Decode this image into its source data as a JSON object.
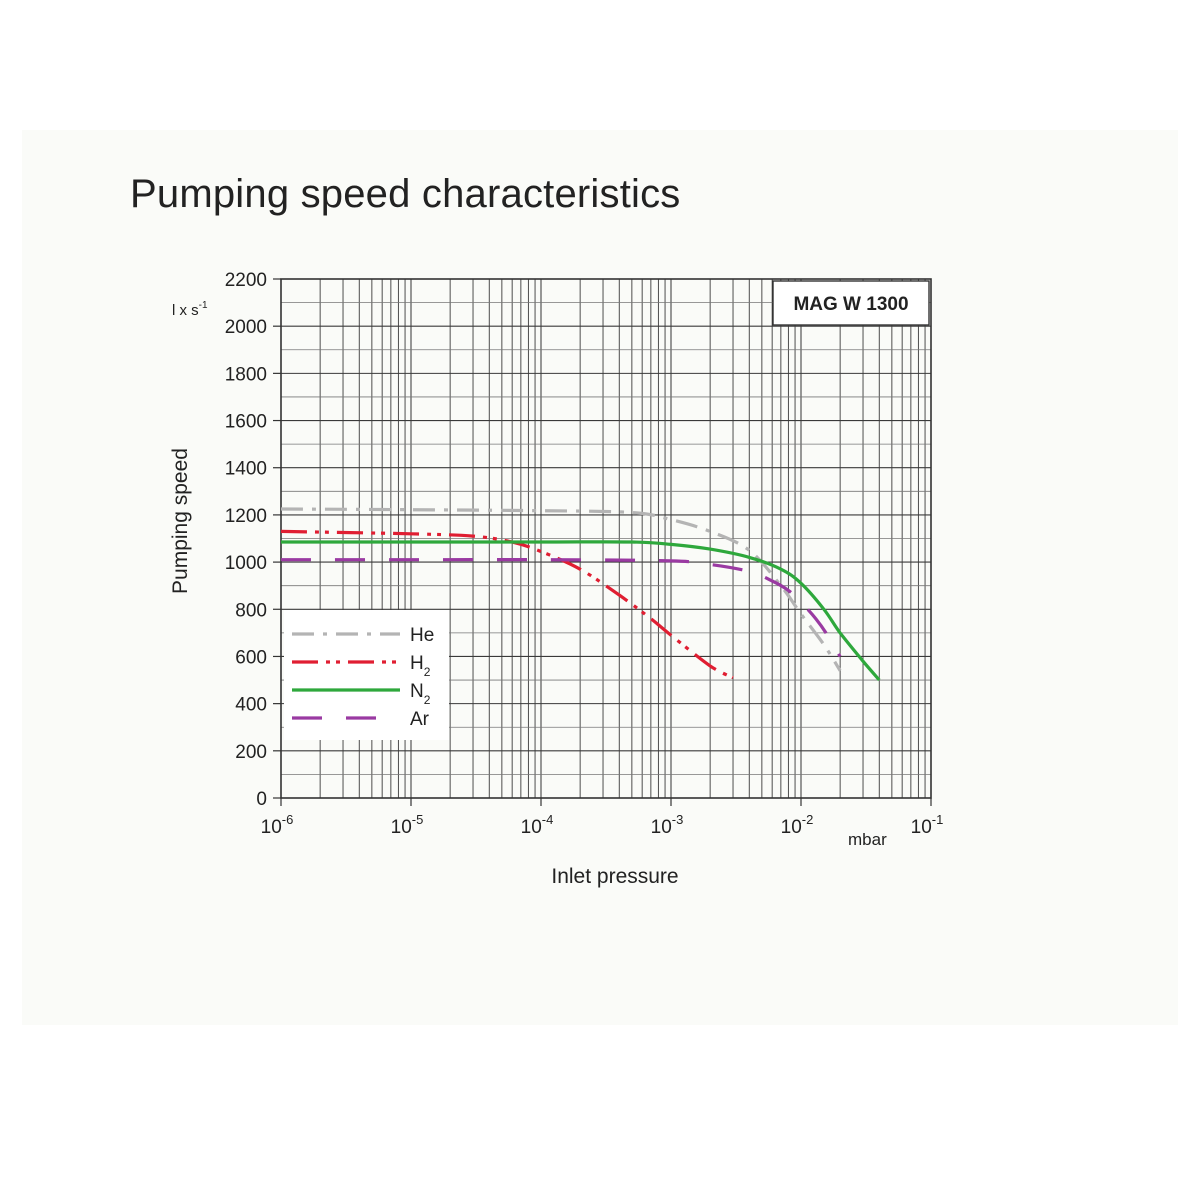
{
  "title": "Pumping speed characteristics",
  "chart_data": {
    "type": "line",
    "title": "Pumping speed characteristics",
    "model_label": "MAG W 1300",
    "xlabel": "Inlet pressure",
    "x_unit": "mbar",
    "ylabel": "Pumping speed",
    "y_unit_base": "l x s",
    "y_unit_exp": "-1",
    "x_scale": "log",
    "xlim": [
      1e-06,
      0.1
    ],
    "ylim": [
      0,
      2200
    ],
    "grid": true,
    "legend_position": "bottom-left",
    "x_ticks": [
      {
        "base": "10",
        "exp": "-6",
        "value": 1e-06
      },
      {
        "base": "10",
        "exp": "-5",
        "value": 1e-05
      },
      {
        "base": "10",
        "exp": "-4",
        "value": 0.0001
      },
      {
        "base": "10",
        "exp": "-3",
        "value": 0.001
      },
      {
        "base": "10",
        "exp": "-2",
        "value": 0.01
      },
      {
        "base": "10",
        "exp": "-1",
        "value": 0.1
      }
    ],
    "y_ticks": [
      "0",
      "200",
      "400",
      "600",
      "800",
      "1000",
      "1200",
      "1400",
      "1600",
      "1800",
      "2000",
      "2200"
    ],
    "series": [
      {
        "name": "He",
        "name_base": "He",
        "name_sub": "",
        "color": "#b4b4b4",
        "dash": "dash-dot",
        "x": [
          1e-06,
          1e-05,
          0.0001,
          0.0005,
          0.001,
          0.002,
          0.004,
          0.007,
          0.01,
          0.015,
          0.02
        ],
        "y": [
          1225,
          1222,
          1218,
          1210,
          1180,
          1130,
          1050,
          900,
          780,
          650,
          540
        ]
      },
      {
        "name": "H2",
        "name_base": "H",
        "name_sub": "2",
        "color": "#e01e32",
        "dash": "dash-dot-dot",
        "x": [
          1e-06,
          1e-05,
          3e-05,
          6e-05,
          0.0001,
          0.0002,
          0.0004,
          0.0007,
          0.001,
          0.002,
          0.003
        ],
        "y": [
          1130,
          1120,
          1110,
          1085,
          1045,
          970,
          860,
          760,
          690,
          560,
          510
        ]
      },
      {
        "name": "N2",
        "name_base": "N",
        "name_sub": "2",
        "color": "#2ea83c",
        "dash": "solid",
        "x": [
          1e-06,
          1e-05,
          0.0001,
          0.0005,
          0.001,
          0.002,
          0.004,
          0.007,
          0.01,
          0.015,
          0.02,
          0.03,
          0.04
        ],
        "y": [
          1085,
          1085,
          1085,
          1085,
          1075,
          1055,
          1020,
          970,
          910,
          800,
          700,
          580,
          500
        ]
      },
      {
        "name": "Ar",
        "name_base": "Ar",
        "name_sub": "",
        "color": "#9a3aa2",
        "dash": "long-dash",
        "x": [
          1e-06,
          1e-05,
          0.0001,
          0.001,
          0.002,
          0.004,
          0.006,
          0.008,
          0.01,
          0.013,
          0.016,
          0.02
        ],
        "y": [
          1010,
          1010,
          1010,
          1005,
          990,
          960,
          920,
          880,
          830,
          760,
          690,
          600
        ]
      }
    ]
  }
}
